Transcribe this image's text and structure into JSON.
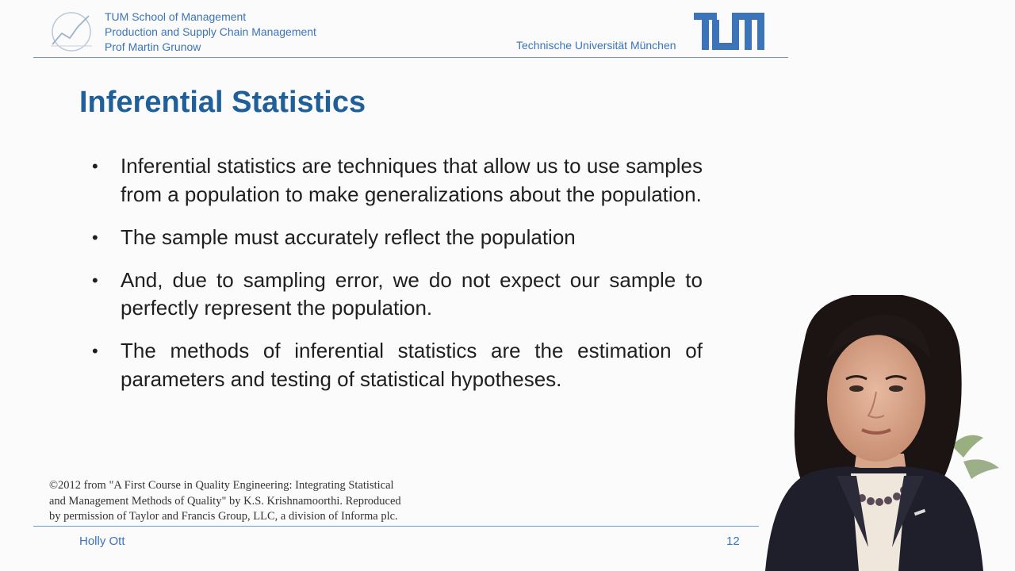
{
  "header": {
    "institution_lines": [
      "TUM School of Management",
      "Production and Supply Chain Management",
      "Prof Martin Grunow"
    ],
    "university": "Technische Universität München",
    "logo_text": "TUM"
  },
  "slide": {
    "title": "Inferential Statistics",
    "bullets": [
      "Inferential statistics are techniques that allow us to use samples from a population to make generalizations about the population.",
      "The sample must accurately reflect the population",
      "And, due to sampling error, we do not expect our sample to perfectly represent the population.",
      "The methods of inferential statistics are the estimation of parameters and testing of statistical hypotheses."
    ],
    "credit_lines": [
      "©2012 from \"A First Course in Quality Engineering: Integrating Statistical",
      "and Management Methods of Quality\" by K.S. Krishnamoorthi. Reproduced",
      "by permission of Taylor and Francis Group, LLC, a division of Informa plc."
    ]
  },
  "footer": {
    "presenter_name": "Holly Ott",
    "page_number": "12"
  },
  "colors": {
    "brand_blue": "#3b74b8",
    "title_blue": "#1f5f9a",
    "text": "#1f1f1f"
  }
}
